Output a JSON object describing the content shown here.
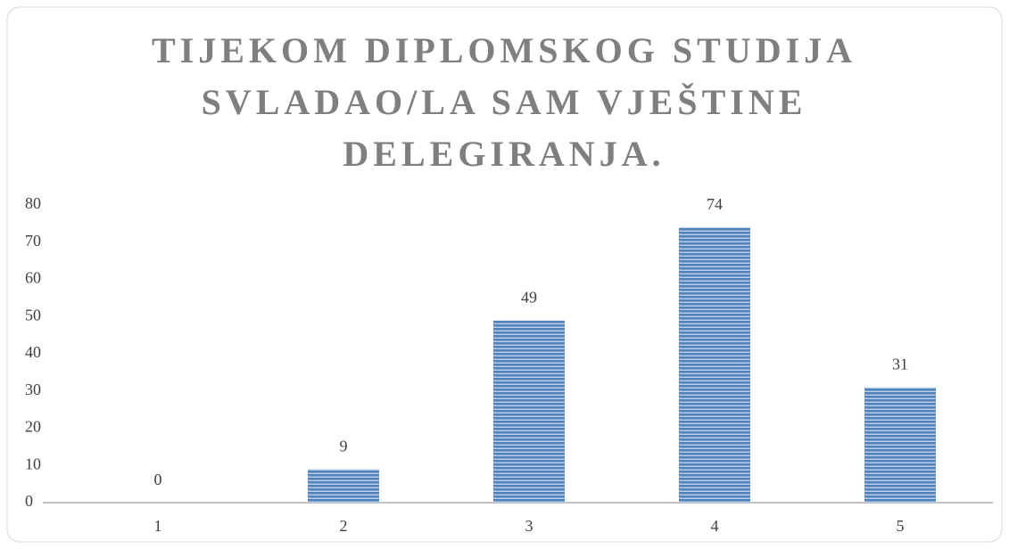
{
  "chart_data": {
    "type": "bar",
    "title": "TIJEKOM DIPLOMSKOG STUDIJA SVLADAO/LA SAM VJEŠTINE DELEGIRANJA.",
    "categories": [
      "1",
      "2",
      "3",
      "4",
      "5"
    ],
    "values": [
      0,
      9,
      49,
      74,
      31
    ],
    "color": "#4f81bd",
    "ylim": [
      0,
      80
    ],
    "yticks": [
      0,
      10,
      20,
      30,
      40,
      50,
      60,
      70,
      80
    ],
    "grid": false
  }
}
